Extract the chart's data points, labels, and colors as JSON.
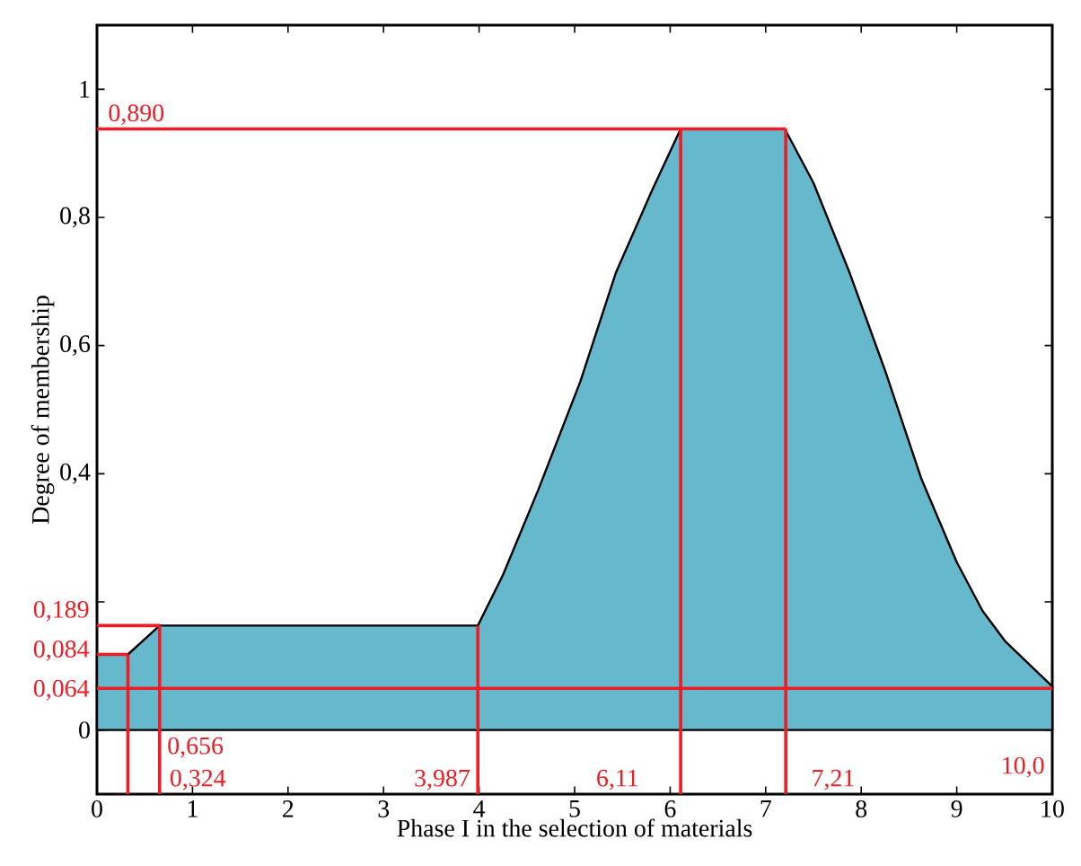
{
  "chart_data": {
    "type": "area",
    "xlabel": "Phase I in the selection of materials",
    "ylabel": "Degree of membership",
    "xlim": [
      0,
      10
    ],
    "ylim": [
      -0.1,
      1.1
    ],
    "xticks": [
      0,
      1,
      2,
      3,
      4,
      5,
      6,
      7,
      8,
      9,
      10
    ],
    "yticks": [
      0,
      {
        "value": 0.2,
        "label": null
      },
      {
        "value": 0.4,
        "label": "0,4"
      },
      {
        "value": 0.6,
        "label": "0,6"
      },
      {
        "value": 0.8,
        "label": "0,8"
      },
      1
    ],
    "series": [
      {
        "color": "#66b8cc",
        "x": [
          0,
          0.324,
          0.656,
          3.987,
          4.25,
          4.62,
          5.06,
          5.43,
          5.81,
          6.11,
          7.2,
          7.5,
          7.88,
          8.25,
          8.63,
          9.0,
          9.27,
          9.51,
          10.0
        ],
        "values": [
          0.118,
          0.118,
          0.163,
          0.163,
          0.242,
          0.375,
          0.544,
          0.713,
          0.842,
          0.938,
          0.938,
          0.854,
          0.713,
          0.561,
          0.392,
          0.262,
          0.186,
          0.138,
          0.068
        ]
      },
      {
        "type": "line",
        "color": "#ee1c25",
        "x": [
          0,
          7.21
        ],
        "values": [
          0.938,
          0.938
        ]
      },
      {
        "type": "line",
        "color": "#ee1c25",
        "x": [
          6.11,
          6.11
        ],
        "values": [
          -0.1,
          0.938
        ]
      },
      {
        "type": "line",
        "color": "#ee1c25",
        "x": [
          7.21,
          7.21
        ],
        "values": [
          -0.1,
          0.938
        ]
      },
      {
        "type": "line",
        "color": "#ee1c25",
        "x": [
          0,
          10
        ],
        "values": [
          0.065,
          0.065
        ]
      },
      {
        "type": "line",
        "color": "#ee1c25",
        "x": [
          3.987,
          3.987
        ],
        "values": [
          -0.1,
          0.163
        ]
      },
      {
        "type": "line",
        "color": "#ee1c25",
        "x": [
          0,
          0.656
        ],
        "values": [
          0.163,
          0.163
        ]
      },
      {
        "type": "line",
        "color": "#ee1c25",
        "x": [
          0.656,
          0.656
        ],
        "values": [
          -0.1,
          0.163
        ]
      },
      {
        "type": "line",
        "color": "#ee1c25",
        "x": [
          0,
          0.324
        ],
        "values": [
          0.118,
          0.118
        ]
      },
      {
        "type": "line",
        "color": "#ee1c25",
        "x": [
          0.324,
          0.324
        ],
        "values": [
          -0.1,
          0.118
        ]
      }
    ],
    "annotations": [
      {
        "text": "0,890",
        "x": 0,
        "y": 0.938
      },
      {
        "text": "0,189",
        "x": 0,
        "y": 0.163
      },
      {
        "text": "0,084",
        "x": 0,
        "y": 0.118
      },
      {
        "text": "0,064",
        "x": 0,
        "y": 0.065
      },
      {
        "text": "0,656",
        "x": 0.656,
        "y": -0.1
      },
      {
        "text": "0,324",
        "x": 0.324,
        "y": -0.1
      },
      {
        "text": "3,987",
        "x": 3.987,
        "y": -0.1
      },
      {
        "text": "6,11",
        "x": 6.11,
        "y": -0.1
      },
      {
        "text": "7,21",
        "x": 7.21,
        "y": -0.1
      },
      {
        "text": "10,0",
        "x": 10.0,
        "y": 0.065
      }
    ]
  }
}
